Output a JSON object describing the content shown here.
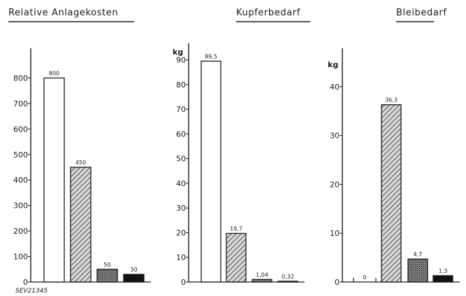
{
  "chart_data": [
    {
      "type": "bar",
      "title": "Relative Anlagekosten",
      "ylabel": "",
      "ylim": [
        0,
        900
      ],
      "yticks": [
        0,
        100,
        200,
        300,
        400,
        500,
        600,
        700,
        800
      ],
      "values": [
        800,
        450,
        50,
        30
      ],
      "labels": [
        "800",
        "450",
        "50",
        "30"
      ],
      "fills": [
        "white",
        "hatched",
        "crosshatched",
        "black"
      ],
      "grid": false
    },
    {
      "type": "bar",
      "title": "Kupferbedarf",
      "ylabel": "kg",
      "ylim": [
        0,
        95
      ],
      "yticks": [
        0,
        10,
        20,
        30,
        40,
        50,
        60,
        70,
        80,
        90
      ],
      "values": [
        89.5,
        19.7,
        1.04,
        0.32
      ],
      "labels": [
        "89,5",
        "19,7",
        "1,04",
        "0,32"
      ],
      "fills": [
        "white",
        "hatched",
        "crosshatched",
        "black"
      ],
      "grid": false
    },
    {
      "type": "bar",
      "title": "Bleibedarf",
      "ylabel": "kg",
      "ylim": [
        0,
        47
      ],
      "yticks": [
        0,
        10,
        20,
        30,
        40
      ],
      "values": [
        0,
        36.3,
        4.7,
        1.3
      ],
      "labels": [
        "0",
        "36,3",
        "4,7",
        "1,3"
      ],
      "fills": [
        "white",
        "hatched",
        "crosshatched",
        "black"
      ],
      "grid": false
    }
  ],
  "figure_ref": "SEV21345"
}
